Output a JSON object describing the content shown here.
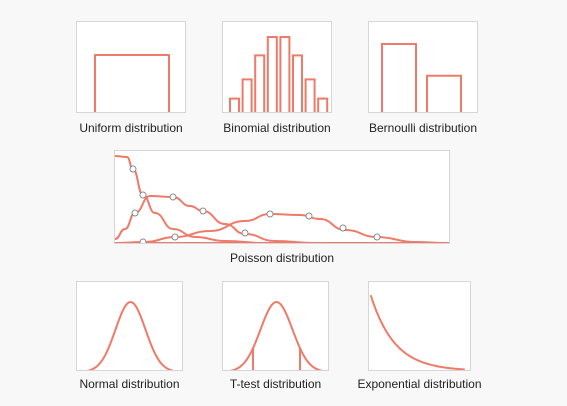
{
  "colors": {
    "accent": "#f07a68",
    "panel_border": "#d6d6d6",
    "background": "#f8f8f8"
  },
  "captions": {
    "uniform": "Uniform distribution",
    "binomial": "Binomial distribution",
    "bernoulli": "Bernoulli distribution",
    "poisson": "Poisson distribution",
    "normal": "Normal distribution",
    "ttest": "T-test distribution",
    "exponential": "Exponential distribution"
  },
  "shapes": {
    "binomial_relative_heights": [
      0.18,
      0.42,
      0.72,
      0.95,
      0.95,
      0.72,
      0.42,
      0.18
    ],
    "bernoulli_relative_heights": [
      1.0,
      0.54
    ]
  }
}
